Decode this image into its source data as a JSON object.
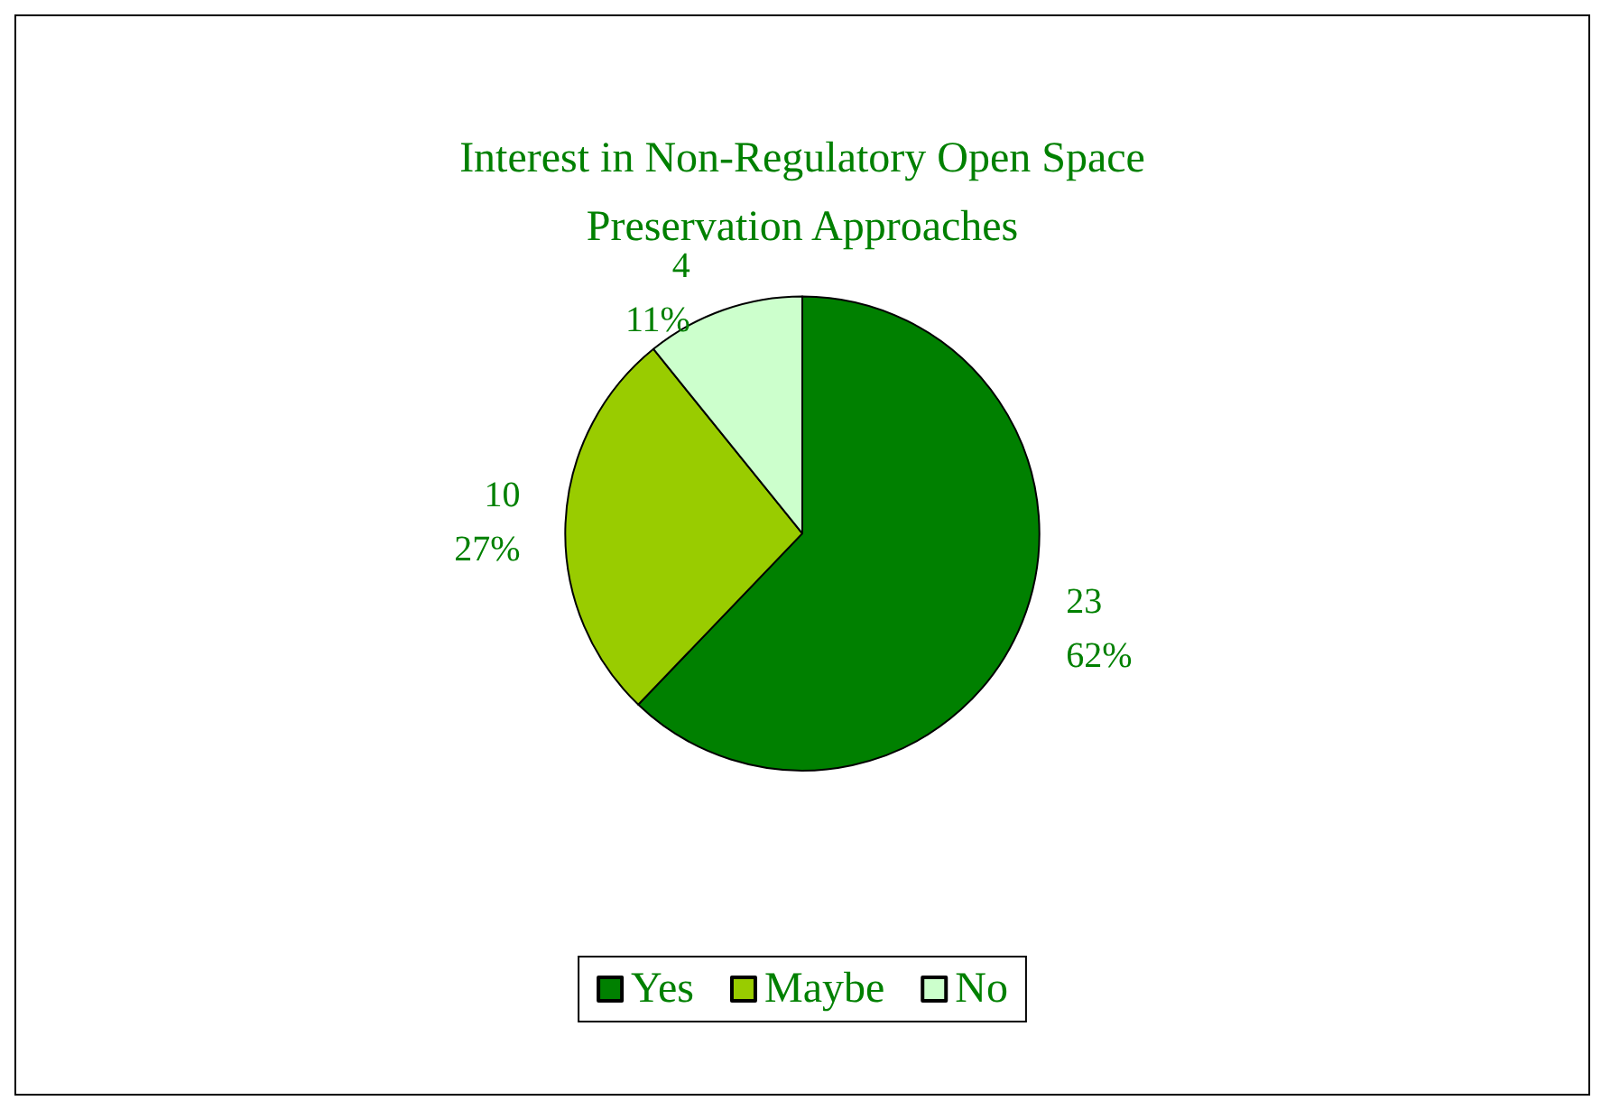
{
  "chart_data": {
    "type": "pie",
    "title": "Interest in Non-Regulatory Open Space\nPreservation Approaches",
    "categories": [
      "Yes",
      "Maybe",
      "No"
    ],
    "values": [
      23,
      10,
      4
    ],
    "colors": [
      "#008000",
      "#99cc00",
      "#ccffcc"
    ],
    "value_labels": [
      "23\n62%",
      "10\n27%",
      "4\n11%"
    ],
    "legend": "bottom"
  }
}
